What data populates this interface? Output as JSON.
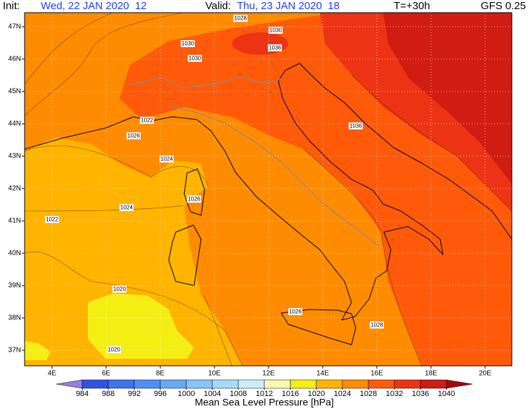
{
  "header": {
    "init_label": "Init:",
    "init_value": "Wed, 22 JAN 2020  12",
    "valid_label": "Valid:",
    "valid_value": "Thu, 23 JAN 2020  18",
    "lead_time": "T=+30h",
    "model": "GFS 0.25"
  },
  "map": {
    "lat_labels": [
      "47N",
      "46N",
      "45N",
      "44N",
      "43N",
      "42N",
      "41N",
      "40N",
      "39N",
      "38N",
      "37N"
    ],
    "lon_labels": [
      "4E",
      "6E",
      "8E",
      "10E",
      "12E",
      "14E",
      "16E",
      "18E",
      "20E"
    ],
    "contour_labels": [
      "1028",
      "1030",
      "1030",
      "1030",
      "1036",
      "1022",
      "1026",
      "1024",
      "1024",
      "1026",
      "1022",
      "1020",
      "1020",
      "1026",
      "1028",
      "1036"
    ]
  },
  "legend": {
    "title": "Mean Sea Level Pressure [hPa]",
    "ticks": [
      984,
      988,
      992,
      996,
      1000,
      1004,
      1008,
      1012,
      1016,
      1020,
      1024,
      1028,
      1032,
      1036,
      1040
    ],
    "colors": [
      "#9a7fe0",
      "#2f55e0",
      "#3c74ee",
      "#4f91f2",
      "#66aaf5",
      "#86c4f9",
      "#a6dafb",
      "#c9effc",
      "#f8f8b0",
      "#f5ee14",
      "#ffb400",
      "#ff8c00",
      "#ff5a0a",
      "#ec3414",
      "#d01c12",
      "#a80808"
    ]
  }
}
